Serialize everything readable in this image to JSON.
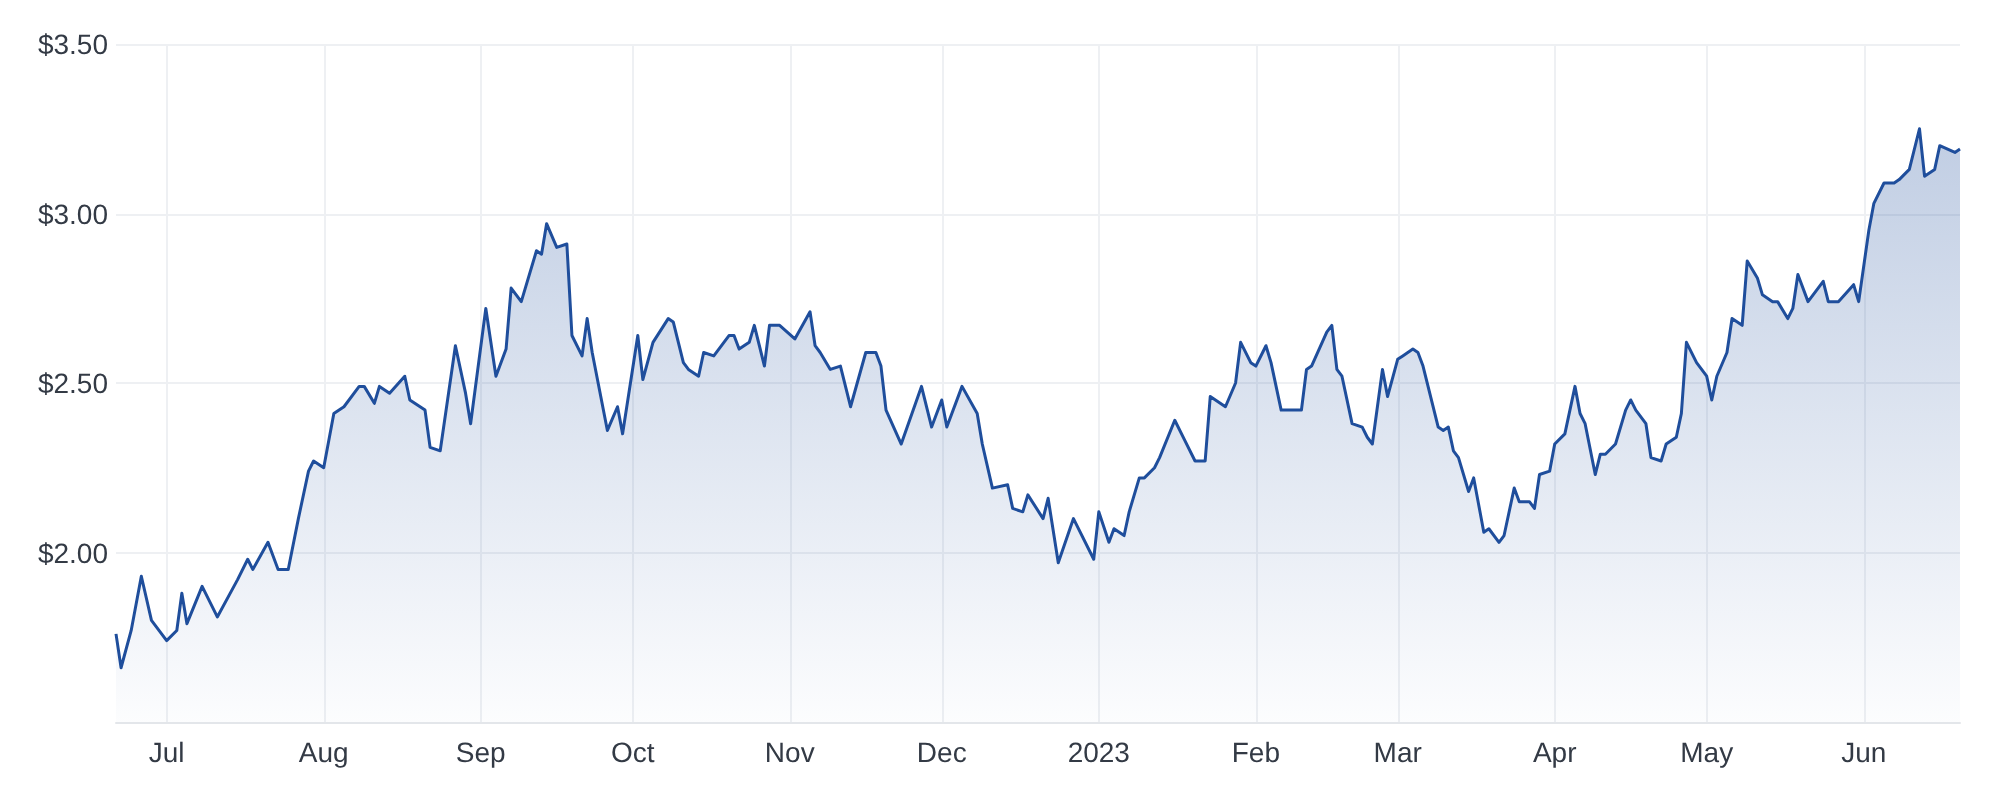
{
  "chart_data": {
    "type": "area",
    "color": "#1f4e9c",
    "grid": true,
    "marker": "none",
    "line_style": "solid",
    "xlim": [
      "2022-06-21",
      "2023-06-20"
    ],
    "ylim": [
      1.5,
      3.5
    ],
    "yticks": [
      {
        "value": 2,
        "label": "$2.00"
      },
      {
        "value": 2.5,
        "label": "$2.50"
      },
      {
        "value": 3,
        "label": "$3.00"
      },
      {
        "value": 3.5,
        "label": "$3.50"
      }
    ],
    "xticks": [
      {
        "value": "2022-07-01",
        "label": "Jul"
      },
      {
        "value": "2022-08-01",
        "label": "Aug"
      },
      {
        "value": "2022-09-01",
        "label": "Sep"
      },
      {
        "value": "2022-10-01",
        "label": "Oct"
      },
      {
        "value": "2022-11-01",
        "label": "Nov"
      },
      {
        "value": "2022-12-01",
        "label": "Dec"
      },
      {
        "value": "2023-01-01",
        "label": "2023"
      },
      {
        "value": "2023-02-01",
        "label": "Feb"
      },
      {
        "value": "2023-03-01",
        "label": "Mar"
      },
      {
        "value": "2023-04-01",
        "label": "Apr"
      },
      {
        "value": "2023-05-01",
        "label": "May"
      },
      {
        "value": "2023-06-01",
        "label": "Jun"
      }
    ],
    "x": [
      "2022-06-21",
      "2022-06-22",
      "2022-06-24",
      "2022-06-26",
      "2022-06-28",
      "2022-07-01",
      "2022-07-03",
      "2022-07-04",
      "2022-07-05",
      "2022-07-08",
      "2022-07-11",
      "2022-07-15",
      "2022-07-17",
      "2022-07-18",
      "2022-07-21",
      "2022-07-23",
      "2022-07-25",
      "2022-07-27",
      "2022-07-29",
      "2022-07-30",
      "2022-08-01",
      "2022-08-03",
      "2022-08-05",
      "2022-08-08",
      "2022-08-09",
      "2022-08-11",
      "2022-08-12",
      "2022-08-14",
      "2022-08-17",
      "2022-08-18",
      "2022-08-21",
      "2022-08-22",
      "2022-08-24",
      "2022-08-27",
      "2022-08-29",
      "2022-08-30",
      "2022-09-02",
      "2022-09-04",
      "2022-09-06",
      "2022-09-07",
      "2022-09-09",
      "2022-09-12",
      "2022-09-13",
      "2022-09-14",
      "2022-09-16",
      "2022-09-18",
      "2022-09-19",
      "2022-09-21",
      "2022-09-22",
      "2022-09-23",
      "2022-09-26",
      "2022-09-28",
      "2022-09-29",
      "2022-10-02",
      "2022-10-03",
      "2022-10-05",
      "2022-10-08",
      "2022-10-09",
      "2022-10-11",
      "2022-10-12",
      "2022-10-14",
      "2022-10-15",
      "2022-10-17",
      "2022-10-20",
      "2022-10-21",
      "2022-10-22",
      "2022-10-24",
      "2022-10-25",
      "2022-10-27",
      "2022-10-28",
      "2022-10-30",
      "2022-11-02",
      "2022-11-05",
      "2022-11-06",
      "2022-11-07",
      "2022-11-09",
      "2022-11-11",
      "2022-11-13",
      "2022-11-16",
      "2022-11-18",
      "2022-11-19",
      "2022-11-20",
      "2022-11-23",
      "2022-11-27",
      "2022-11-29",
      "2022-12-01",
      "2022-12-02",
      "2022-12-05",
      "2022-12-08",
      "2022-12-09",
      "2022-12-11",
      "2022-12-14",
      "2022-12-15",
      "2022-12-17",
      "2022-12-18",
      "2022-12-21",
      "2022-12-22",
      "2022-12-24",
      "2022-12-27",
      "2022-12-31",
      "2023-01-01",
      "2023-01-03",
      "2023-01-04",
      "2023-01-06",
      "2023-01-07",
      "2023-01-09",
      "2023-01-10",
      "2023-01-12",
      "2023-01-13",
      "2023-01-16",
      "2023-01-18",
      "2023-01-20",
      "2023-01-22",
      "2023-01-23",
      "2023-01-26",
      "2023-01-28",
      "2023-01-29",
      "2023-01-31",
      "2023-02-01",
      "2023-02-03",
      "2023-02-04",
      "2023-02-06",
      "2023-02-10",
      "2023-02-11",
      "2023-02-12",
      "2023-02-15",
      "2023-02-16",
      "2023-02-17",
      "2023-02-18",
      "2023-02-20",
      "2023-02-22",
      "2023-02-23",
      "2023-02-24",
      "2023-02-26",
      "2023-02-27",
      "2023-03-01",
      "2023-03-02",
      "2023-03-04",
      "2023-03-05",
      "2023-03-06",
      "2023-03-09",
      "2023-03-10",
      "2023-03-11",
      "2023-03-12",
      "2023-03-13",
      "2023-03-15",
      "2023-03-16",
      "2023-03-18",
      "2023-03-19",
      "2023-03-21",
      "2023-03-22",
      "2023-03-24",
      "2023-03-25",
      "2023-03-27",
      "2023-03-28",
      "2023-03-29",
      "2023-03-31",
      "2023-04-01",
      "2023-04-03",
      "2023-04-05",
      "2023-04-06",
      "2023-04-07",
      "2023-04-09",
      "2023-04-10",
      "2023-04-11",
      "2023-04-13",
      "2023-04-15",
      "2023-04-16",
      "2023-04-17",
      "2023-04-19",
      "2023-04-20",
      "2023-04-22",
      "2023-04-23",
      "2023-04-25",
      "2023-04-26",
      "2023-04-27",
      "2023-04-29",
      "2023-05-01",
      "2023-05-02",
      "2023-05-03",
      "2023-05-05",
      "2023-05-06",
      "2023-05-08",
      "2023-05-09",
      "2023-05-11",
      "2023-05-12",
      "2023-05-14",
      "2023-05-15",
      "2023-05-17",
      "2023-05-18",
      "2023-05-19",
      "2023-05-21",
      "2023-05-24",
      "2023-05-25",
      "2023-05-27",
      "2023-05-30",
      "2023-05-31",
      "2023-06-02",
      "2023-06-03",
      "2023-06-05",
      "2023-06-07",
      "2023-06-08",
      "2023-06-10",
      "2023-06-12",
      "2023-06-13",
      "2023-06-15",
      "2023-06-16",
      "2023-06-19",
      "2023-06-20"
    ],
    "values": [
      1.76,
      1.66,
      1.77,
      1.93,
      1.8,
      1.74,
      1.77,
      1.88,
      1.79,
      1.9,
      1.81,
      1.92,
      1.98,
      1.95,
      2.03,
      1.95,
      1.95,
      2.1,
      2.24,
      2.27,
      2.25,
      2.41,
      2.43,
      2.49,
      2.49,
      2.44,
      2.49,
      2.47,
      2.52,
      2.45,
      2.42,
      2.31,
      2.3,
      2.61,
      2.47,
      2.38,
      2.72,
      2.52,
      2.6,
      2.78,
      2.74,
      2.89,
      2.88,
      2.97,
      2.9,
      2.91,
      2.64,
      2.58,
      2.69,
      2.59,
      2.36,
      2.43,
      2.35,
      2.64,
      2.51,
      2.62,
      2.69,
      2.68,
      2.56,
      2.54,
      2.52,
      2.59,
      2.58,
      2.64,
      2.64,
      2.6,
      2.62,
      2.67,
      2.55,
      2.67,
      2.67,
      2.63,
      2.71,
      2.61,
      2.59,
      2.54,
      2.55,
      2.43,
      2.59,
      2.59,
      2.55,
      2.42,
      2.32,
      2.49,
      2.37,
      2.45,
      2.37,
      2.49,
      2.41,
      2.32,
      2.19,
      2.2,
      2.13,
      2.12,
      2.17,
      2.1,
      2.16,
      1.97,
      2.1,
      1.98,
      2.12,
      2.03,
      2.07,
      2.05,
      2.12,
      2.22,
      2.22,
      2.25,
      2.28,
      2.39,
      2.33,
      2.27,
      2.27,
      2.46,
      2.43,
      2.5,
      2.62,
      2.56,
      2.55,
      2.61,
      2.56,
      2.42,
      2.42,
      2.54,
      2.55,
      2.65,
      2.67,
      2.54,
      2.52,
      2.38,
      2.37,
      2.34,
      2.32,
      2.54,
      2.46,
      2.57,
      2.58,
      2.6,
      2.59,
      2.55,
      2.37,
      2.36,
      2.37,
      2.3,
      2.28,
      2.18,
      2.22,
      2.06,
      2.07,
      2.03,
      2.05,
      2.19,
      2.15,
      2.15,
      2.13,
      2.23,
      2.24,
      2.32,
      2.35,
      2.49,
      2.41,
      2.38,
      2.23,
      2.29,
      2.29,
      2.32,
      2.42,
      2.45,
      2.42,
      2.38,
      2.28,
      2.27,
      2.32,
      2.34,
      2.41,
      2.62,
      2.56,
      2.52,
      2.45,
      2.52,
      2.59,
      2.69,
      2.67,
      2.86,
      2.81,
      2.76,
      2.74,
      2.74,
      2.69,
      2.72,
      2.82,
      2.74,
      2.8,
      2.74,
      2.74,
      2.79,
      2.74,
      2.95,
      3.03,
      3.09,
      3.09,
      3.1,
      3.13,
      3.25,
      3.11,
      3.13,
      3.2,
      3.18,
      3.19
    ]
  }
}
